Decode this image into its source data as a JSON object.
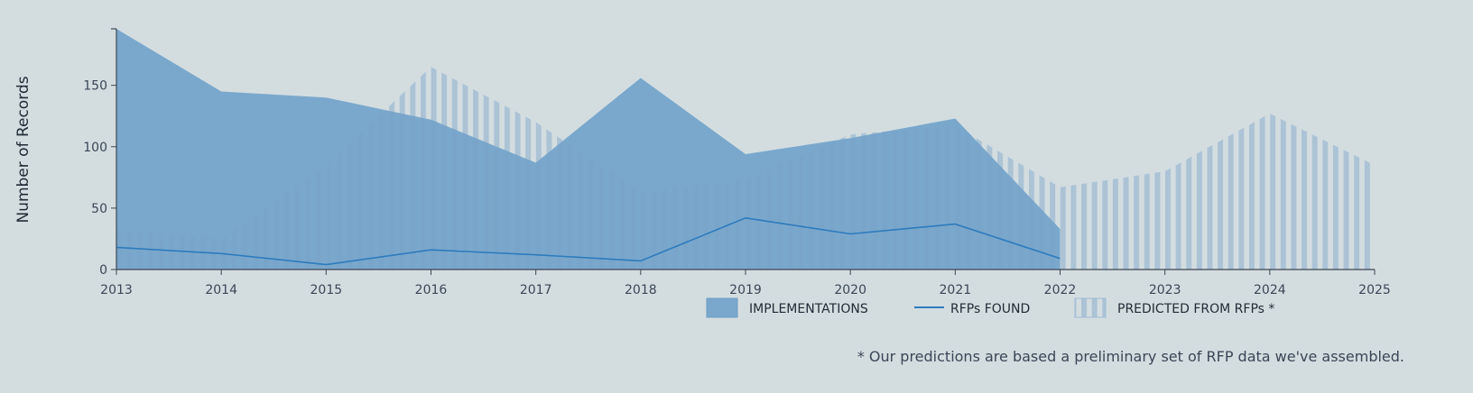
{
  "chart_data": {
    "type": "area",
    "title": "",
    "xlabel": "",
    "ylabel": "Number of Records",
    "x": [
      2013,
      2014,
      2015,
      2016,
      2017,
      2018,
      2019,
      2020,
      2021,
      2022,
      2023,
      2024,
      2025
    ],
    "xlim": [
      2013,
      2025
    ],
    "ylim": [
      0,
      196
    ],
    "yticks": [
      0,
      50,
      100,
      150
    ],
    "xtick_labels": [
      "2013",
      "2014",
      "2015",
      "2016",
      "2017",
      "2018",
      "2019",
      "2020",
      "2021",
      "2022",
      "2023",
      "2024",
      "2025"
    ],
    "grid": false,
    "legend_position": "bottom-right",
    "series": [
      {
        "name": "IMPLEMENTATIONS",
        "kind": "area",
        "color": "#7aa8cc",
        "x": [
          2013,
          2014,
          2015,
          2016,
          2017,
          2018,
          2019,
          2020,
          2021,
          2022
        ],
        "values": [
          196,
          145,
          140,
          122,
          87,
          156,
          94,
          107,
          123,
          33
        ]
      },
      {
        "name": "RFPs FOUND",
        "kind": "line",
        "color": "#2d7bbd",
        "x": [
          2013,
          2014,
          2015,
          2016,
          2017,
          2018,
          2019,
          2020,
          2021,
          2022
        ],
        "values": [
          18,
          13,
          4,
          16,
          12,
          7,
          42,
          29,
          37,
          9
        ]
      },
      {
        "name": "PREDICTED FROM RFPs *",
        "kind": "striped-area",
        "color": "#8fb2d0",
        "x": [
          2013,
          2014,
          2015,
          2016,
          2017,
          2018,
          2019,
          2020,
          2021,
          2022,
          2023,
          2024,
          2025
        ],
        "values": [
          33,
          25,
          85,
          165,
          120,
          63,
          73,
          110,
          117,
          67,
          80,
          127,
          85
        ]
      }
    ],
    "footnote": "* Our predictions are based a preliminary set of RFP data we've assembled."
  }
}
